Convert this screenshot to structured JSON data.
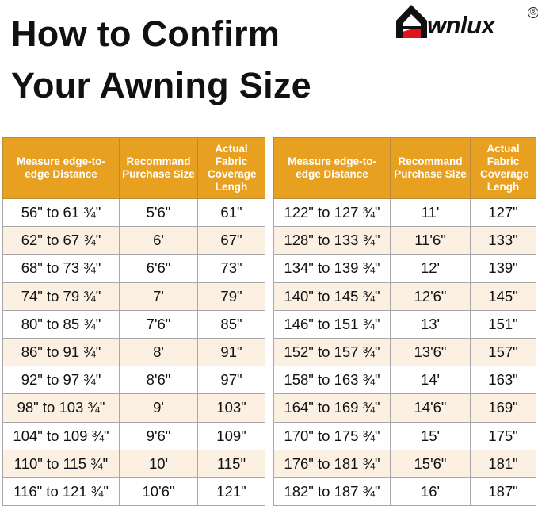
{
  "title": {
    "line1": "How to Confirm",
    "line2": "Your Awning Size"
  },
  "logo": {
    "text": "wnlux",
    "full": "Awnlux",
    "registered": "®"
  },
  "colors": {
    "header": "#E8A020",
    "alt_row": "#FCF0E2",
    "logo_red": "#E0141E"
  },
  "headers": [
    "Measure edge-to-edge Distance",
    "Recommand Purchase Size",
    "Actual Fabric Coverage Lengh"
  ],
  "left_rows": [
    [
      "56\" to 61 ¾\"",
      "5'6\"",
      "61\""
    ],
    [
      "62\" to 67 ¾\"",
      "6'",
      "67\""
    ],
    [
      "68\" to 73 ¾\"",
      "6'6\"",
      "73\""
    ],
    [
      "74\" to 79 ¾\"",
      "7'",
      "79\""
    ],
    [
      "80\" to 85 ¾\"",
      "7'6\"",
      "85\""
    ],
    [
      "86\" to 91 ¾\"",
      "8'",
      "91\""
    ],
    [
      "92\" to 97 ¾\"",
      "8'6\"",
      "97\""
    ],
    [
      "98\" to 103 ¾\"",
      "9'",
      "103\""
    ],
    [
      "104\" to 109 ¾\"",
      "9'6\"",
      "109\""
    ],
    [
      "110\" to 115 ¾\"",
      "10'",
      "115\""
    ],
    [
      "116\" to 121 ¾\"",
      "10'6\"",
      "121\""
    ]
  ],
  "right_rows": [
    [
      "122\" to 127 ¾\"",
      "11'",
      "127\""
    ],
    [
      "128\" to 133 ¾\"",
      "11'6\"",
      "133\""
    ],
    [
      "134\" to 139 ¾\"",
      "12'",
      "139\""
    ],
    [
      "140\" to 145 ¾\"",
      "12'6\"",
      "145\""
    ],
    [
      "146\" to 151 ¾\"",
      "13'",
      "151\""
    ],
    [
      "152\" to 157 ¾\"",
      "13'6\"",
      "157\""
    ],
    [
      "158\" to 163 ¾\"",
      "14'",
      "163\""
    ],
    [
      "164\" to 169 ¾\"",
      "14'6\"",
      "169\""
    ],
    [
      "170\" to 175 ¾\"",
      "15'",
      "175\""
    ],
    [
      "176\" to 181 ¾\"",
      "15'6\"",
      "181\""
    ],
    [
      "182\" to 187 ¾\"",
      "16'",
      "187\""
    ]
  ]
}
